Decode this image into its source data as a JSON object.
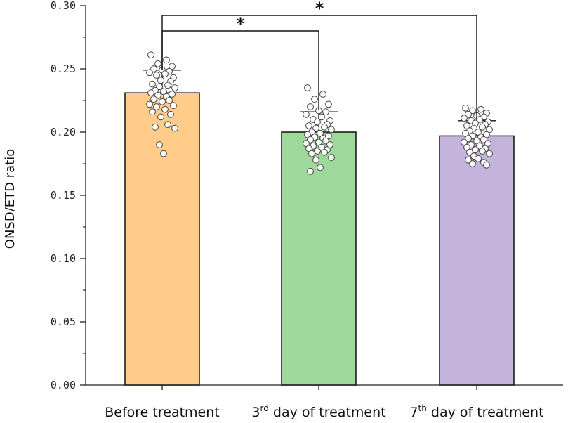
{
  "chart_data": {
    "type": "bar",
    "title": "",
    "xlabel": "",
    "ylabel": "ONSD/ETD ratio",
    "ylim": [
      0,
      0.3
    ],
    "yticks": [
      "0.00",
      "0.05",
      "0.10",
      "0.15",
      "0.20",
      "0.25",
      "0.30"
    ],
    "categories": [
      {
        "main": "Before treatment",
        "sup": "",
        "rest": ""
      },
      {
        "main": "3",
        "sup": "rd",
        "rest": " day of treatment"
      },
      {
        "main": "7",
        "sup": "th",
        "rest": " day of treatment"
      }
    ],
    "values": [
      0.231,
      0.2,
      0.197
    ],
    "errors": [
      0.018,
      0.016,
      0.012
    ],
    "colors": [
      "#FFCC8A",
      "#9ED89A",
      "#C4B3DA"
    ],
    "points": [
      [
        0.261,
        0.257,
        0.254,
        0.252,
        0.25,
        0.249,
        0.248,
        0.247,
        0.246,
        0.245,
        0.243,
        0.241,
        0.24,
        0.238,
        0.237,
        0.236,
        0.235,
        0.233,
        0.232,
        0.231,
        0.23,
        0.229,
        0.228,
        0.226,
        0.225,
        0.224,
        0.222,
        0.221,
        0.22,
        0.218,
        0.216,
        0.214,
        0.212,
        0.206,
        0.204,
        0.203,
        0.19,
        0.183
      ],
      [
        0.235,
        0.23,
        0.226,
        0.222,
        0.22,
        0.217,
        0.216,
        0.214,
        0.212,
        0.21,
        0.209,
        0.208,
        0.206,
        0.205,
        0.204,
        0.203,
        0.202,
        0.2,
        0.199,
        0.198,
        0.197,
        0.196,
        0.195,
        0.194,
        0.193,
        0.192,
        0.191,
        0.19,
        0.189,
        0.188,
        0.187,
        0.186,
        0.185,
        0.184,
        0.183,
        0.18,
        0.178,
        0.172,
        0.169
      ],
      [
        0.219,
        0.218,
        0.217,
        0.215,
        0.214,
        0.213,
        0.212,
        0.211,
        0.21,
        0.209,
        0.208,
        0.207,
        0.206,
        0.205,
        0.204,
        0.203,
        0.202,
        0.201,
        0.2,
        0.199,
        0.198,
        0.197,
        0.196,
        0.195,
        0.194,
        0.193,
        0.192,
        0.191,
        0.19,
        0.189,
        0.188,
        0.187,
        0.186,
        0.185,
        0.184,
        0.183,
        0.181,
        0.179,
        0.178,
        0.176,
        0.175,
        0.174
      ]
    ],
    "significance": [
      {
        "from": 0,
        "to": 1,
        "label": "*"
      },
      {
        "from": 0,
        "to": 2,
        "label": "*"
      }
    ]
  }
}
